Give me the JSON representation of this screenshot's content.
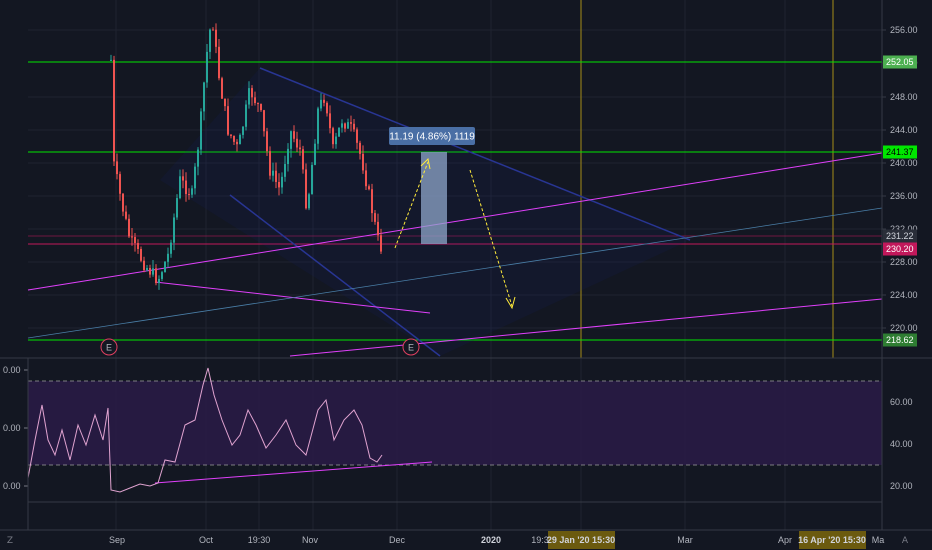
{
  "price_axis": {
    "ticks": [
      "256.00",
      "252.00",
      "248.00",
      "244.00",
      "240.00",
      "236.00",
      "232.00",
      "228.00",
      "224.00",
      "220.00"
    ],
    "tags": [
      {
        "label": "252.05",
        "bg": "#4caf50",
        "fg": "#ffffff"
      },
      {
        "label": "241.37",
        "bg": "#00e600",
        "fg": "#000000"
      },
      {
        "label": "231.22",
        "bg": "#2a2e39",
        "fg": "#d1d4dc"
      },
      {
        "label": "230.20",
        "bg": "#c2185b",
        "fg": "#ffffff"
      },
      {
        "label": "218.62",
        "bg": "#2e7d32",
        "fg": "#ffffff"
      }
    ]
  },
  "measure_label": "11.19 (4.86%) 1119",
  "earnings_markers": [
    "E",
    "E"
  ],
  "rsi_axis": {
    "ticks": [
      "60.00",
      "40.00",
      "20.00"
    ]
  },
  "left_axis": {
    "ticks": [
      "0.00",
      "0.00",
      "0.00"
    ]
  },
  "time_axis": {
    "ticks": [
      "Sep",
      "Oct",
      "19:30",
      "Nov",
      "Dec",
      "2020",
      "19:3",
      "Mar",
      "Apr",
      "Ma"
    ],
    "highlights": [
      "29 Jan '20   15:30",
      "16 Apr '20   15:30"
    ]
  },
  "corner_icons": {
    "left": "Z",
    "right": "A"
  },
  "colors": {
    "background": "#131722",
    "up_candle": "#26a69a",
    "down_candle": "#ef5350",
    "horizontal_levels": "#00e600",
    "trendlines": "#e040fb",
    "channel": "#1a237e",
    "arrows": "#ffeb3b",
    "rsi_band": "#2a1b47",
    "rsi_line": "#e0a3d0",
    "vertical_markers": "#8d7a1a"
  }
}
